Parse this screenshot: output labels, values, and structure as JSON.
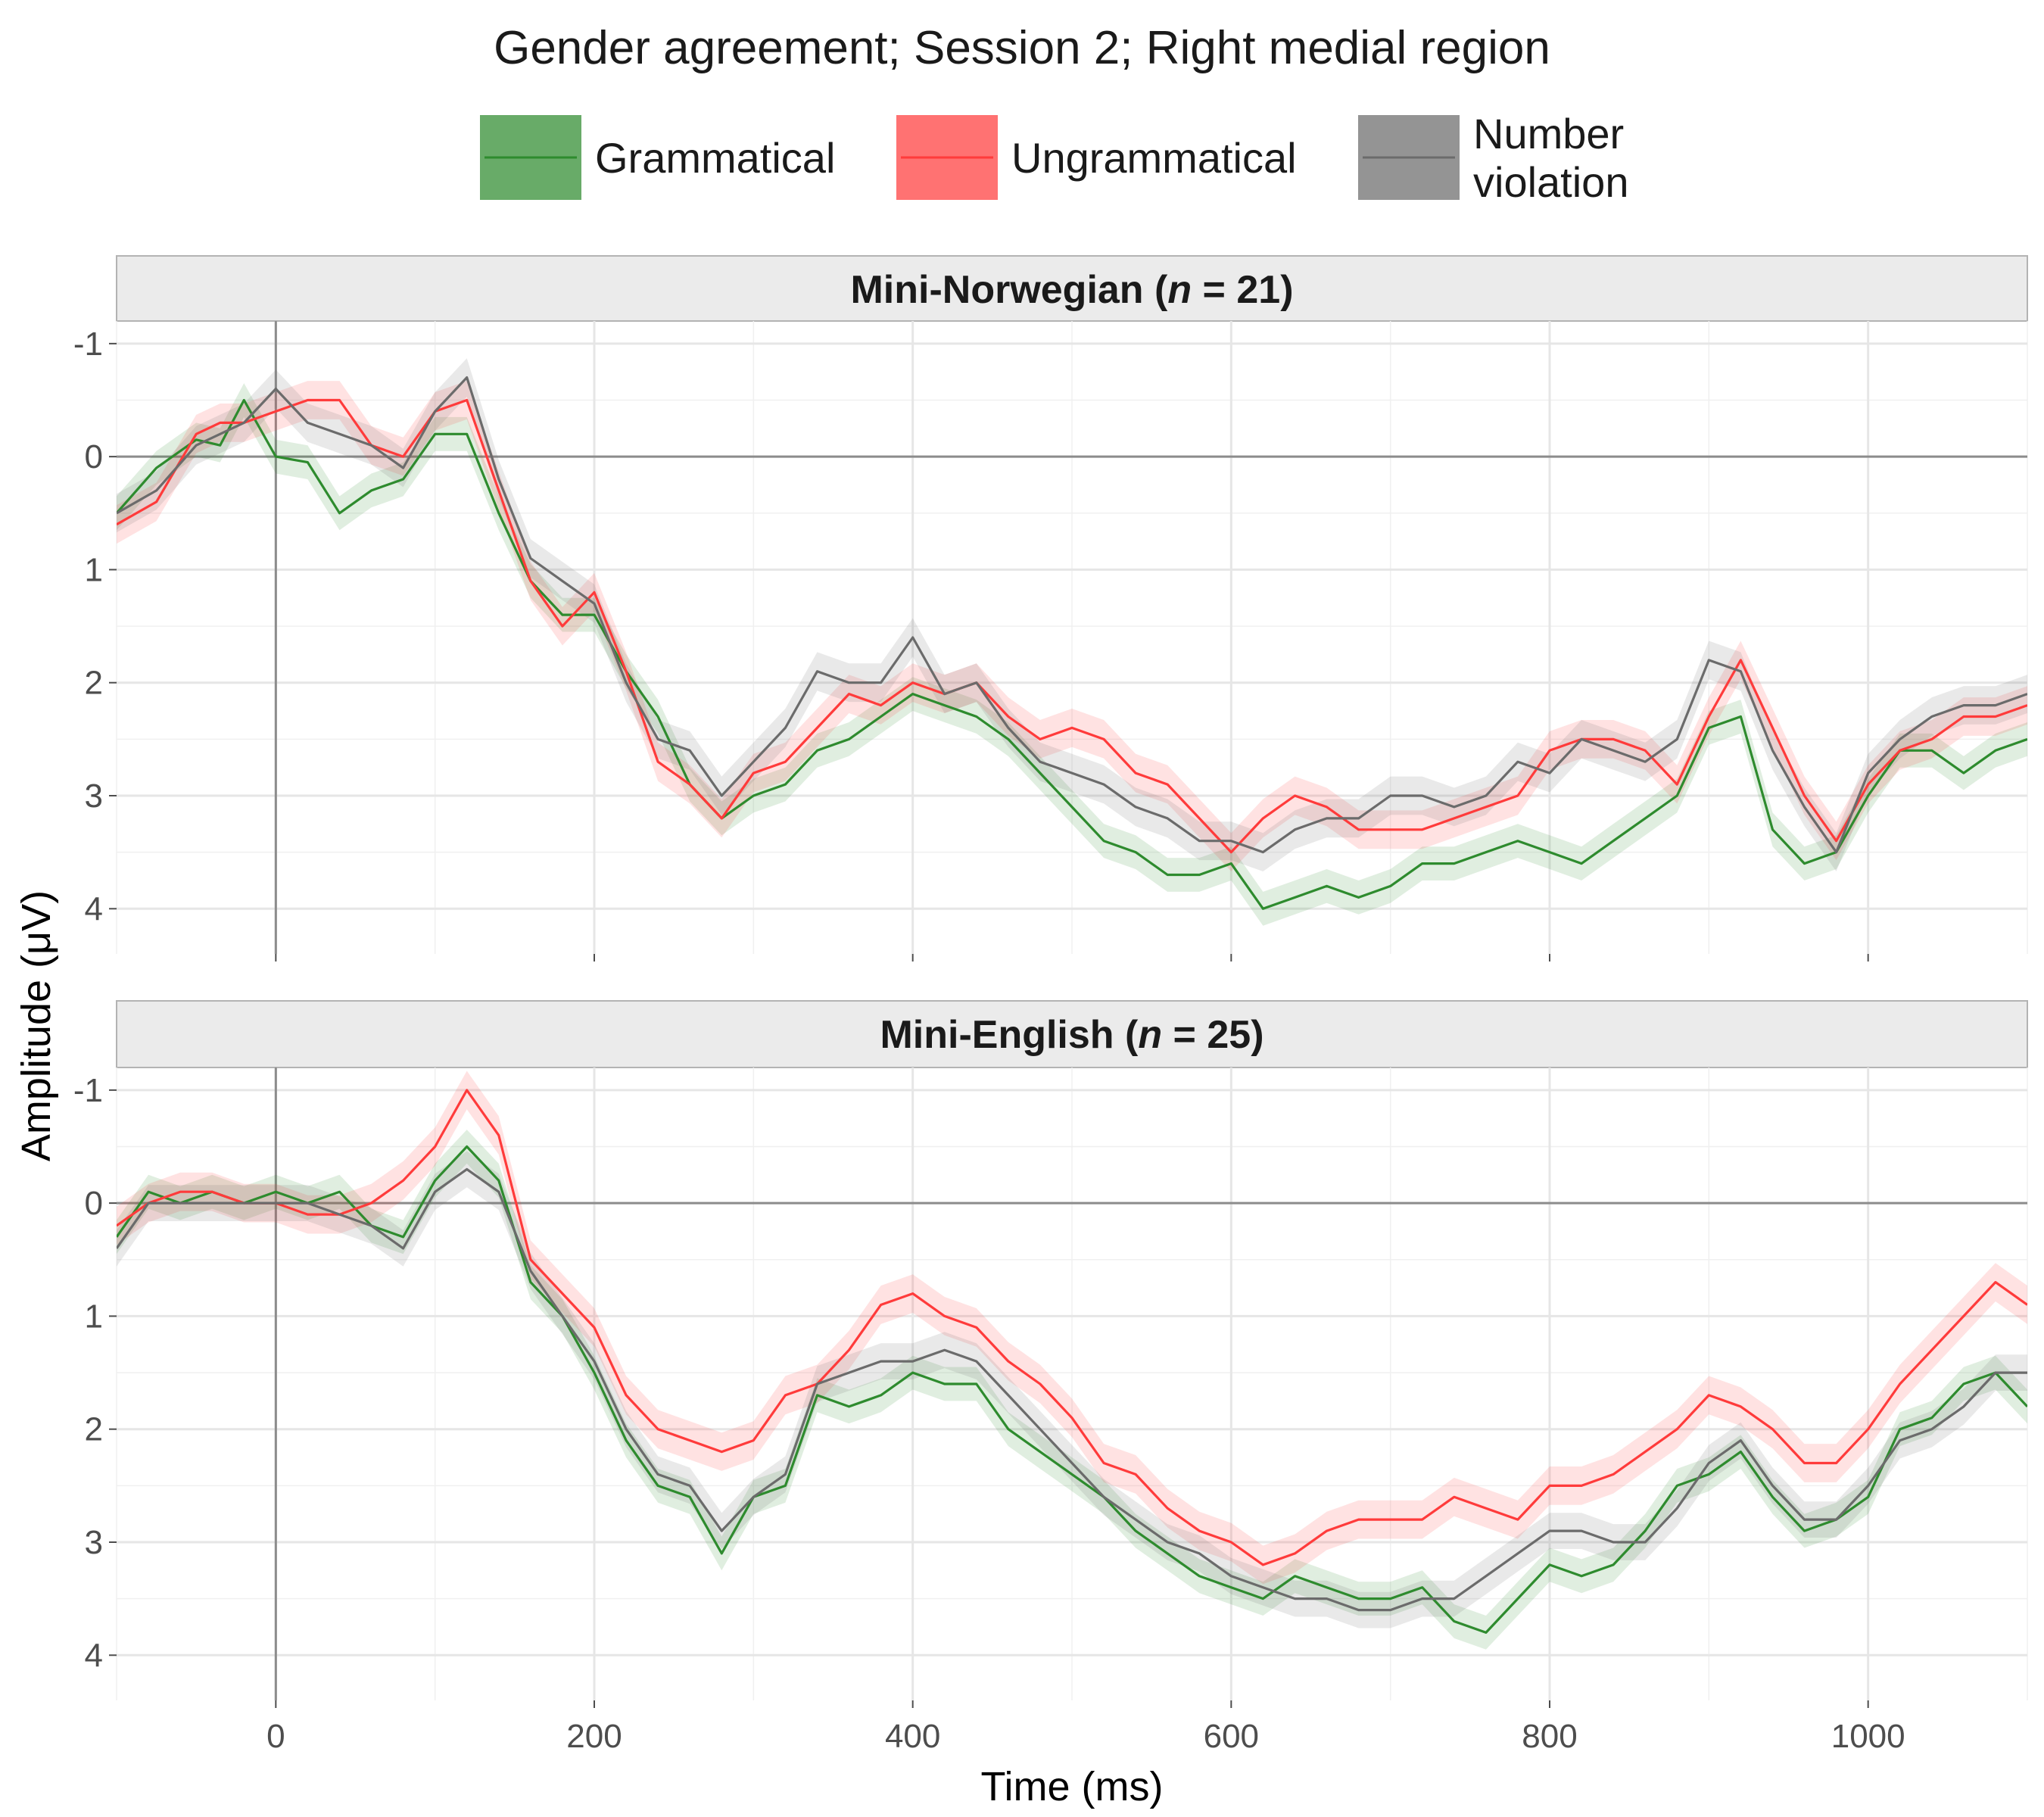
{
  "chart_data": {
    "type": "line",
    "title": "Gender agreement; Session 2; Right medial region",
    "xlabel": "Time (ms)",
    "ylabel": "Amplitude (μV)",
    "xlim": [
      -100,
      1100
    ],
    "ylim": [
      -1.2,
      4.4
    ],
    "y_reversed": true,
    "x_ticks": [
      0,
      200,
      400,
      600,
      800,
      1000
    ],
    "y_ticks": [
      -1,
      0,
      1,
      2,
      3,
      4
    ],
    "grid": true,
    "legend_position": "top",
    "legend": [
      {
        "key": "grammatical",
        "label": "Grammatical",
        "color": "#2e8b2e"
      },
      {
        "key": "ungrammatical",
        "label": "Ungrammatical",
        "color": "#ff3b3b"
      },
      {
        "key": "number",
        "label": "Number\nviolation",
        "color": "#6b6b6b"
      }
    ],
    "panels": [
      {
        "strip_parts": [
          "Mini-Norwegian (",
          "n",
          " = 21)"
        ],
        "band_halfwidth": {
          "grammatical": 0.15,
          "ungrammatical": 0.17,
          "number": 0.17
        },
        "series": [
          {
            "key": "grammatical",
            "x": [
              -100,
              -75,
              -50,
              -35,
              -20,
              0,
              20,
              40,
              60,
              80,
              100,
              120,
              140,
              160,
              180,
              200,
              220,
              240,
              260,
              280,
              300,
              320,
              340,
              360,
              380,
              400,
              420,
              440,
              460,
              480,
              500,
              520,
              540,
              560,
              580,
              600,
              620,
              640,
              660,
              680,
              700,
              720,
              740,
              760,
              780,
              800,
              820,
              840,
              860,
              880,
              900,
              920,
              940,
              960,
              980,
              1000,
              1020,
              1040,
              1060,
              1080,
              1100
            ],
            "y": [
              0.5,
              0.1,
              -0.15,
              -0.1,
              -0.5,
              0.0,
              0.05,
              0.5,
              0.3,
              0.2,
              -0.2,
              -0.2,
              0.5,
              1.1,
              1.4,
              1.4,
              1.9,
              2.3,
              2.9,
              3.2,
              3.0,
              2.9,
              2.6,
              2.5,
              2.3,
              2.1,
              2.2,
              2.3,
              2.5,
              2.8,
              3.1,
              3.4,
              3.5,
              3.7,
              3.7,
              3.6,
              4.0,
              3.9,
              3.8,
              3.9,
              3.8,
              3.6,
              3.6,
              3.5,
              3.4,
              3.5,
              3.6,
              3.4,
              3.2,
              3.0,
              2.4,
              2.3,
              3.3,
              3.6,
              3.5,
              3.0,
              2.6,
              2.6,
              2.8,
              2.6,
              2.5
            ]
          },
          {
            "key": "ungrammatical",
            "x": [
              -100,
              -75,
              -50,
              -35,
              -20,
              0,
              20,
              40,
              60,
              80,
              100,
              120,
              140,
              160,
              180,
              200,
              220,
              240,
              260,
              280,
              300,
              320,
              340,
              360,
              380,
              400,
              420,
              440,
              460,
              480,
              500,
              520,
              540,
              560,
              580,
              600,
              620,
              640,
              660,
              680,
              700,
              720,
              740,
              760,
              780,
              800,
              820,
              840,
              860,
              880,
              900,
              920,
              940,
              960,
              980,
              1000,
              1020,
              1040,
              1060,
              1080,
              1100
            ],
            "y": [
              0.6,
              0.4,
              -0.2,
              -0.3,
              -0.3,
              -0.4,
              -0.5,
              -0.5,
              -0.1,
              0.0,
              -0.4,
              -0.5,
              0.3,
              1.1,
              1.5,
              1.2,
              1.9,
              2.7,
              2.9,
              3.2,
              2.8,
              2.7,
              2.4,
              2.1,
              2.2,
              2.0,
              2.1,
              2.0,
              2.3,
              2.5,
              2.4,
              2.5,
              2.8,
              2.9,
              3.2,
              3.5,
              3.2,
              3.0,
              3.1,
              3.3,
              3.3,
              3.3,
              3.2,
              3.1,
              3.0,
              2.6,
              2.5,
              2.5,
              2.6,
              2.9,
              2.3,
              1.8,
              2.4,
              3.0,
              3.4,
              2.9,
              2.6,
              2.5,
              2.3,
              2.3,
              2.2
            ]
          },
          {
            "key": "number",
            "x": [
              -100,
              -75,
              -50,
              -35,
              -20,
              0,
              20,
              40,
              60,
              80,
              100,
              120,
              140,
              160,
              180,
              200,
              220,
              240,
              260,
              280,
              300,
              320,
              340,
              360,
              380,
              400,
              420,
              440,
              460,
              480,
              500,
              520,
              540,
              560,
              580,
              600,
              620,
              640,
              660,
              680,
              700,
              720,
              740,
              760,
              780,
              800,
              820,
              840,
              860,
              880,
              900,
              920,
              940,
              960,
              980,
              1000,
              1020,
              1040,
              1060,
              1080,
              1100
            ],
            "y": [
              0.5,
              0.3,
              -0.1,
              -0.2,
              -0.3,
              -0.6,
              -0.3,
              -0.2,
              -0.1,
              0.1,
              -0.4,
              -0.7,
              0.2,
              0.9,
              1.1,
              1.3,
              2.0,
              2.5,
              2.6,
              3.0,
              2.7,
              2.4,
              1.9,
              2.0,
              2.0,
              1.6,
              2.1,
              2.0,
              2.4,
              2.7,
              2.8,
              2.9,
              3.1,
              3.2,
              3.4,
              3.4,
              3.5,
              3.3,
              3.2,
              3.2,
              3.0,
              3.0,
              3.1,
              3.0,
              2.7,
              2.8,
              2.5,
              2.6,
              2.7,
              2.5,
              1.8,
              1.9,
              2.6,
              3.1,
              3.5,
              2.8,
              2.5,
              2.3,
              2.2,
              2.2,
              2.1
            ]
          }
        ]
      },
      {
        "strip_parts": [
          "Mini-English (",
          "n",
          " = 25)"
        ],
        "band_halfwidth": {
          "grammatical": 0.15,
          "ungrammatical": 0.17,
          "number": 0.16
        },
        "series": [
          {
            "key": "grammatical",
            "x": [
              -100,
              -80,
              -60,
              -40,
              -20,
              0,
              20,
              40,
              60,
              80,
              100,
              120,
              140,
              160,
              180,
              200,
              220,
              240,
              260,
              280,
              300,
              320,
              340,
              360,
              380,
              400,
              420,
              440,
              460,
              480,
              500,
              520,
              540,
              560,
              580,
              600,
              620,
              640,
              660,
              680,
              700,
              720,
              740,
              760,
              780,
              800,
              820,
              840,
              860,
              880,
              900,
              920,
              940,
              960,
              980,
              1000,
              1020,
              1040,
              1060,
              1080,
              1100
            ],
            "y": [
              0.3,
              -0.1,
              0.0,
              -0.1,
              0.0,
              -0.1,
              0.0,
              -0.1,
              0.2,
              0.3,
              -0.2,
              -0.5,
              -0.2,
              0.7,
              1.0,
              1.5,
              2.1,
              2.5,
              2.6,
              3.1,
              2.6,
              2.5,
              1.7,
              1.8,
              1.7,
              1.5,
              1.6,
              1.6,
              2.0,
              2.2,
              2.4,
              2.6,
              2.9,
              3.1,
              3.3,
              3.4,
              3.5,
              3.3,
              3.4,
              3.5,
              3.5,
              3.4,
              3.7,
              3.8,
              3.5,
              3.2,
              3.3,
              3.2,
              2.9,
              2.5,
              2.4,
              2.2,
              2.6,
              2.9,
              2.8,
              2.6,
              2.0,
              1.9,
              1.6,
              1.5,
              1.8
            ]
          },
          {
            "key": "ungrammatical",
            "x": [
              -100,
              -80,
              -60,
              -40,
              -20,
              0,
              20,
              40,
              60,
              80,
              100,
              120,
              140,
              160,
              180,
              200,
              220,
              240,
              260,
              280,
              300,
              320,
              340,
              360,
              380,
              400,
              420,
              440,
              460,
              480,
              500,
              520,
              540,
              560,
              580,
              600,
              620,
              640,
              660,
              680,
              700,
              720,
              740,
              760,
              780,
              800,
              820,
              840,
              860,
              880,
              900,
              920,
              940,
              960,
              980,
              1000,
              1020,
              1040,
              1060,
              1080,
              1100
            ],
            "y": [
              0.2,
              0.0,
              -0.1,
              -0.1,
              0.0,
              0.0,
              0.1,
              0.1,
              0.0,
              -0.2,
              -0.5,
              -1.0,
              -0.6,
              0.5,
              0.8,
              1.1,
              1.7,
              2.0,
              2.1,
              2.2,
              2.1,
              1.7,
              1.6,
              1.3,
              0.9,
              0.8,
              1.0,
              1.1,
              1.4,
              1.6,
              1.9,
              2.3,
              2.4,
              2.7,
              2.9,
              3.0,
              3.2,
              3.1,
              2.9,
              2.8,
              2.8,
              2.8,
              2.6,
              2.7,
              2.8,
              2.5,
              2.5,
              2.4,
              2.2,
              2.0,
              1.7,
              1.8,
              2.0,
              2.3,
              2.3,
              2.0,
              1.6,
              1.3,
              1.0,
              0.7,
              0.9
            ]
          },
          {
            "key": "number",
            "x": [
              -100,
              -80,
              -60,
              -40,
              -20,
              0,
              20,
              40,
              60,
              80,
              100,
              120,
              140,
              160,
              180,
              200,
              220,
              240,
              260,
              280,
              300,
              320,
              340,
              360,
              380,
              400,
              420,
              440,
              460,
              480,
              500,
              520,
              540,
              560,
              580,
              600,
              620,
              640,
              660,
              680,
              700,
              720,
              740,
              760,
              780,
              800,
              820,
              840,
              860,
              880,
              900,
              920,
              940,
              960,
              980,
              1000,
              1020,
              1040,
              1060,
              1080,
              1100
            ],
            "y": [
              0.4,
              0.0,
              0.0,
              0.0,
              0.0,
              0.0,
              0.0,
              0.1,
              0.2,
              0.4,
              -0.1,
              -0.3,
              -0.1,
              0.6,
              1.0,
              1.4,
              2.0,
              2.4,
              2.5,
              2.9,
              2.6,
              2.4,
              1.6,
              1.5,
              1.4,
              1.4,
              1.3,
              1.4,
              1.7,
              2.0,
              2.3,
              2.6,
              2.8,
              3.0,
              3.1,
              3.3,
              3.4,
              3.5,
              3.5,
              3.6,
              3.6,
              3.5,
              3.5,
              3.3,
              3.1,
              2.9,
              2.9,
              3.0,
              3.0,
              2.7,
              2.3,
              2.1,
              2.5,
              2.8,
              2.8,
              2.5,
              2.1,
              2.0,
              1.8,
              1.5,
              1.5
            ]
          }
        ]
      }
    ]
  }
}
